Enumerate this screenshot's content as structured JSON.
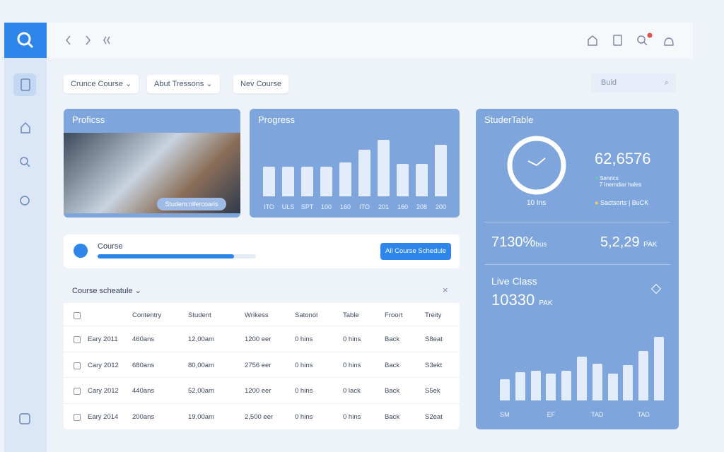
{
  "toolbar": {
    "filters": [
      "Crunce Course",
      "Abut Tressons",
      "Nev Course"
    ],
    "search_placeholder": "Buid"
  },
  "profile_card": {
    "title": "Proficss",
    "caption": "Studem:nlfercoaris"
  },
  "progress_chart": {
    "type": "bar",
    "title": "Progress",
    "categories": [
      "ITO",
      "ULS",
      "SPT",
      "100",
      "160",
      "ITO",
      "201",
      "160",
      "208",
      "200"
    ],
    "values": [
      42,
      42,
      42,
      42,
      48,
      66,
      80,
      46,
      46,
      73
    ],
    "color": "#e3ecfa"
  },
  "student_table": {
    "title": "StuderTable",
    "clock_label": "10 Ins",
    "total": "62,6576",
    "legend": [
      "Senrics",
      "7 Inerndiar hales",
      "Sactsorts | BuCK"
    ],
    "stats": [
      {
        "value": "7130%",
        "unit": "bus"
      },
      {
        "value": "5,2,29",
        "unit": "PAK"
      }
    ]
  },
  "live_class": {
    "title": "Live Class",
    "value": "10330",
    "unit": "PAK",
    "chart": {
      "type": "bar",
      "categories": [
        "SM",
        null,
        null,
        "EF",
        null,
        null,
        "TAD",
        null,
        null,
        "TAD",
        null
      ],
      "values": [
        30,
        40,
        42,
        38,
        42,
        62,
        52,
        38,
        50,
        70,
        90
      ],
      "color": "#e3ecfa"
    }
  },
  "course": {
    "label": "Course",
    "button": "All Course Schedule"
  },
  "schedule": {
    "title": "Course scheatule",
    "columns": [
      "Contentry",
      "Student",
      "Wrikess",
      "Satonol",
      "Table",
      "Froort",
      "Treity"
    ],
    "rows": [
      [
        "Eary 2011",
        "460ans",
        "12,00am",
        "1200 eer",
        "0 hins",
        "0 hins",
        "Back",
        "S8eat"
      ],
      [
        "Cary 2012",
        "680ans",
        "80,00am",
        "2756 eer",
        "0 hins",
        "0 hins",
        "Back",
        "S3ekt"
      ],
      [
        "Cary 2012",
        "440ans",
        "52,00am",
        "1200 eer",
        "0 hins",
        "0 lack",
        "Back",
        "S5ek"
      ],
      [
        "Eary 2014",
        "200ans",
        "19,00am",
        "2,500 eer",
        "0 hins",
        "0 hins",
        "Back",
        "S2eat"
      ]
    ]
  }
}
